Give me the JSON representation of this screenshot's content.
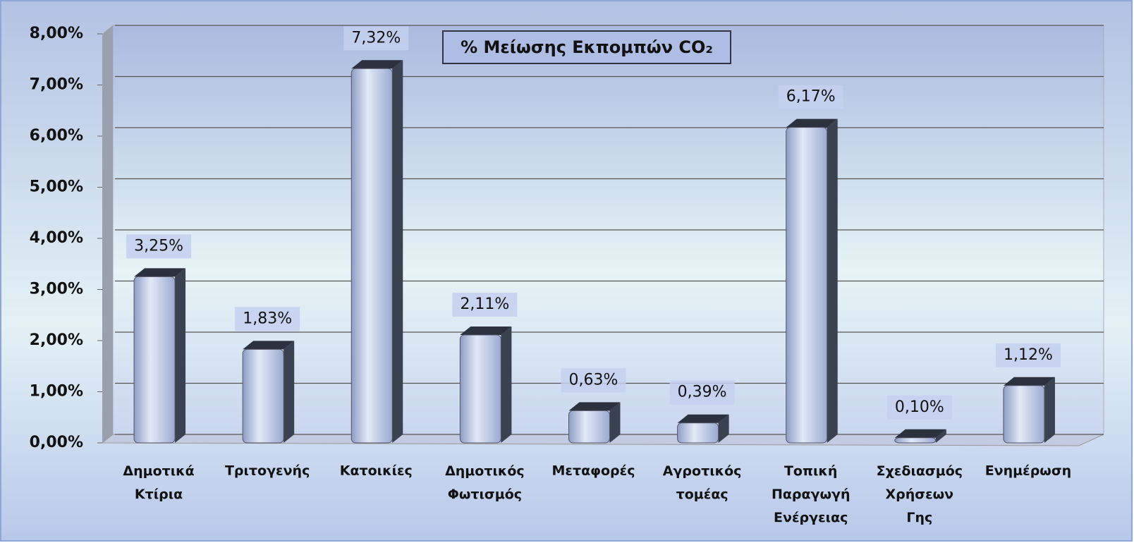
{
  "chart_data": {
    "type": "bar",
    "title": "% Μείωσης Εκπομπών CO₂",
    "categories": [
      "Δημοτικά Κτίρια",
      "Τριτογενής",
      "Κατοικίες",
      "Δημοτικός Φωτισμός",
      "Μεταφορές",
      "Αγροτικός τομέας",
      "Τοπική Παραγωγή Ενέργειας",
      "Σχεδιασμός Χρήσεων Γης",
      "Ενημέρωση"
    ],
    "values": [
      3.25,
      1.83,
      7.32,
      2.11,
      0.63,
      0.39,
      6.17,
      0.1,
      1.12
    ],
    "value_labels": [
      "3,25%",
      "1,83%",
      "7,32%",
      "2,11%",
      "0,63%",
      "0,39%",
      "6,17%",
      "0,10%",
      "1,12%"
    ],
    "color": "#b8c6e6",
    "ylim": [
      0,
      8
    ],
    "yticks": [
      {
        "value": 0,
        "label": "0,00%"
      },
      {
        "value": 1,
        "label": "1,00%"
      },
      {
        "value": 2,
        "label": "2,00%"
      },
      {
        "value": 3,
        "label": "3,00%"
      },
      {
        "value": 4,
        "label": "4,00%"
      },
      {
        "value": 5,
        "label": "5,00%"
      },
      {
        "value": 6,
        "label": "6,00%"
      },
      {
        "value": 7,
        "label": "7,00%"
      },
      {
        "value": 8,
        "label": "8,00%"
      }
    ],
    "grid": true
  }
}
